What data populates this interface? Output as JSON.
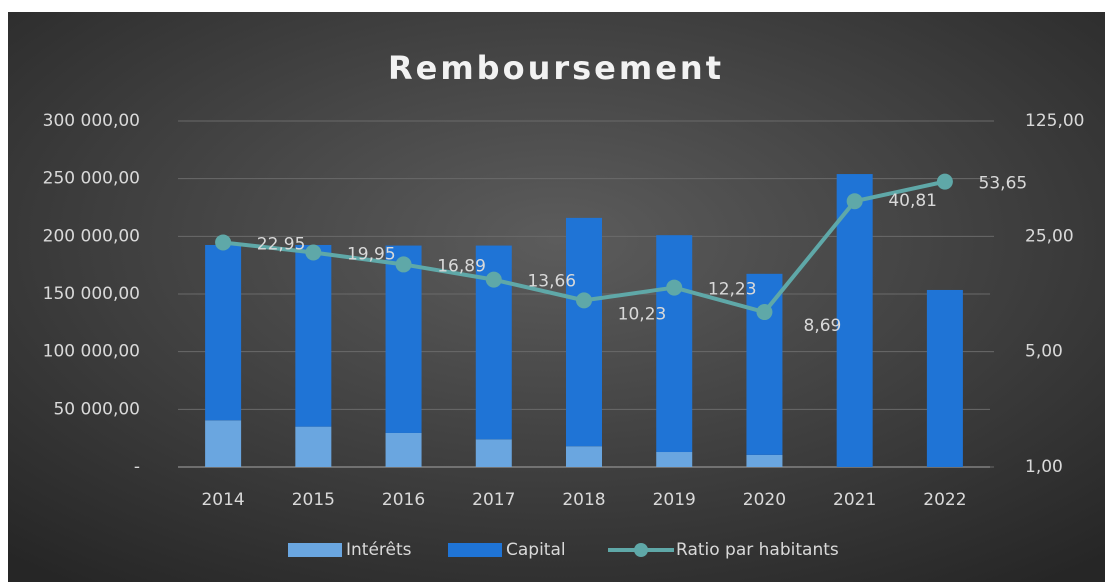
{
  "chart_data": {
    "type": "bar_line",
    "title": "Remboursement",
    "categories": [
      "2014",
      "2015",
      "2016",
      "2017",
      "2018",
      "2019",
      "2020",
      "2021",
      "2022"
    ],
    "series": [
      {
        "name": "Intérêts",
        "type": "bar",
        "color": "#6aa6e0",
        "values": [
          40500,
          35000,
          29500,
          24000,
          18000,
          13000,
          10500,
          0,
          0
        ]
      },
      {
        "name": "Capital",
        "type": "bar",
        "color": "#1f74d6",
        "values": [
          152000,
          157500,
          162500,
          168000,
          198000,
          188000,
          157000,
          254000,
          153500
        ]
      },
      {
        "name": "Ratio par habitants",
        "type": "line",
        "axis": "y2",
        "color": "#5fa8a8",
        "values": [
          22.95,
          19.95,
          16.89,
          13.66,
          10.23,
          12.23,
          8.69,
          40.81,
          53.65
        ],
        "value_labels": [
          "22,95",
          "19,95",
          "16,89",
          "13,66",
          "10,23",
          "12,23",
          "8,69",
          "40,81",
          "53,65"
        ]
      }
    ],
    "ylim": [
      0,
      300000
    ],
    "yticks": [
      {
        "value": 0,
        "label": "-"
      },
      {
        "value": 50000,
        "label": "50 000,00"
      },
      {
        "value": 100000,
        "label": "100 000,00"
      },
      {
        "value": 150000,
        "label": "150 000,00"
      },
      {
        "value": 200000,
        "label": "200 000,00"
      },
      {
        "value": 250000,
        "label": "250 000,00"
      },
      {
        "value": 300000,
        "label": "300 000,00"
      }
    ],
    "y2lim": [
      1,
      125
    ],
    "y2scale": "log",
    "y2ticks": [
      {
        "value": 1,
        "label": "1,00"
      },
      {
        "value": 5,
        "label": "5,00"
      },
      {
        "value": 25,
        "label": "25,00"
      },
      {
        "value": 125,
        "label": "125,00"
      }
    ],
    "grid": true,
    "legend": "bottom"
  }
}
